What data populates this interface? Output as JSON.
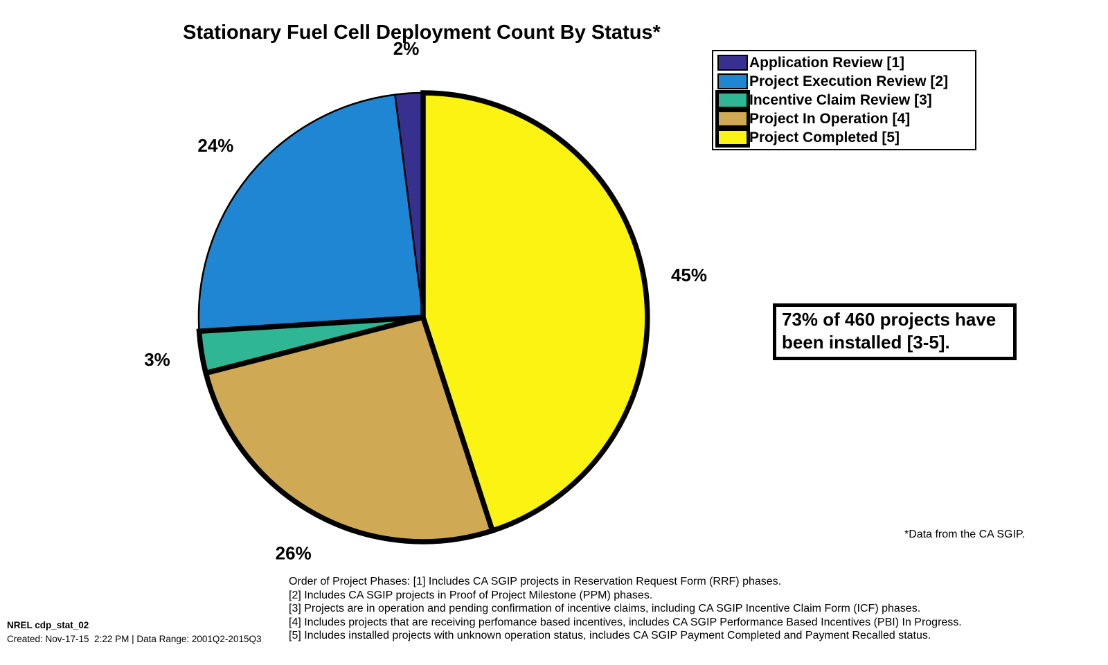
{
  "title": "Stationary Fuel Cell Deployment Count By Status*",
  "chart_data": {
    "type": "pie",
    "title": "Stationary Fuel Cell Deployment Count By Status*",
    "units": "percent of projects",
    "total_projects": 460,
    "start_angle_deg": 90,
    "direction": "counterclockwise",
    "legend_position": "upper-right",
    "slices": [
      {
        "label": "Application Review [1]",
        "value": 2,
        "pct_label": "2%",
        "color": "#38308F",
        "emphasized": false
      },
      {
        "label": "Project Execution Review [2]",
        "value": 24,
        "pct_label": "24%",
        "color": "#1E86D2",
        "emphasized": false
      },
      {
        "label": "Incentive Claim Review [3]",
        "value": 3,
        "pct_label": "3%",
        "color": "#2FB795",
        "emphasized": true
      },
      {
        "label": "Project In Operation [4]",
        "value": 26,
        "pct_label": "26%",
        "color": "#D0A955",
        "emphasized": true
      },
      {
        "label": "Project Completed [5]",
        "value": 45,
        "pct_label": "45%",
        "color": "#FBF311",
        "emphasized": true
      }
    ]
  },
  "annotation": {
    "text": "73% of 460 projects have been installed [3-5]."
  },
  "source_note": "*Data from the CA SGIP.",
  "footnotes": [
    "Order of Project Phases: [1] Includes CA SGIP projects in Reservation Request Form (RRF) phases.",
    "[2] Includes CA SGIP projects in Proof of Project Milestone (PPM) phases.",
    "[3] Projects are in operation and pending confirmation of incentive claims, including CA SGIP Incentive Claim Form (ICF) phases.",
    "[4] Includes projects that are receiving perfomance based incentives, includes CA SGIP Performance Based Incentives (PBI) In Progress.",
    "[5] Includes installed projects with unknown operation status, includes CA SGIP Payment Completed and Payment Recalled status."
  ],
  "footer": {
    "id": "NREL cdp_stat_02",
    "created": "Created: Nov-17-15  2:22 PM | Data Range: 2001Q2-2015Q3"
  },
  "colors": {
    "background": "#ffffff",
    "outline": "#000000"
  }
}
